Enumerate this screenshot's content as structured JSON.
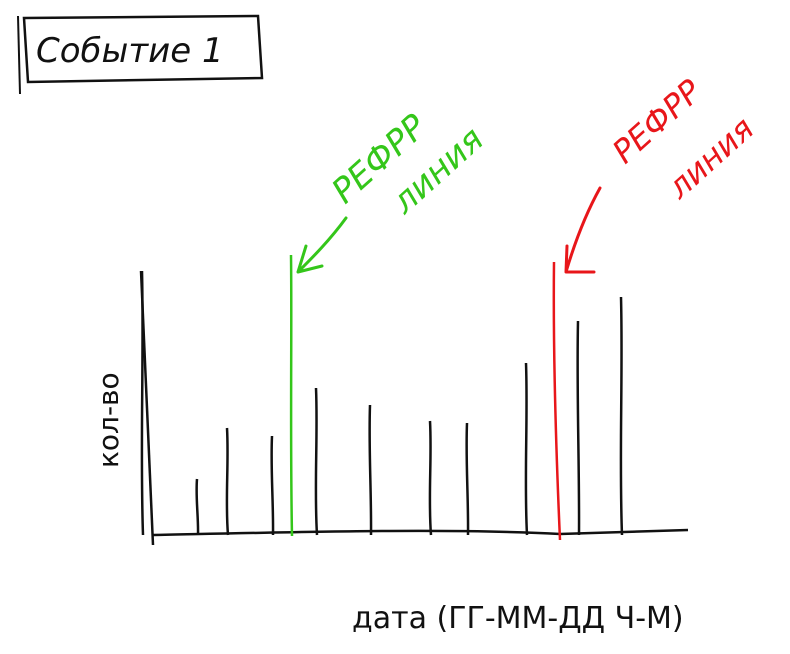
{
  "chart_data": {
    "type": "bar",
    "title": "Событие 1",
    "xlabel": "дата (ГГ-ММ-ДД Ч-М)",
    "ylabel": "кол-во",
    "grid": false,
    "values": [
      264,
      56,
      107,
      99,
      147,
      130,
      114,
      112,
      172,
      214,
      238,
      180
    ],
    "annotations": [
      {
        "label_lines": [
          "РЕФРР",
          "линия"
        ],
        "color": "#34c61a"
      },
      {
        "label_lines": [
          "РЕФРР",
          "линия"
        ],
        "color": "#e8161a"
      }
    ]
  }
}
